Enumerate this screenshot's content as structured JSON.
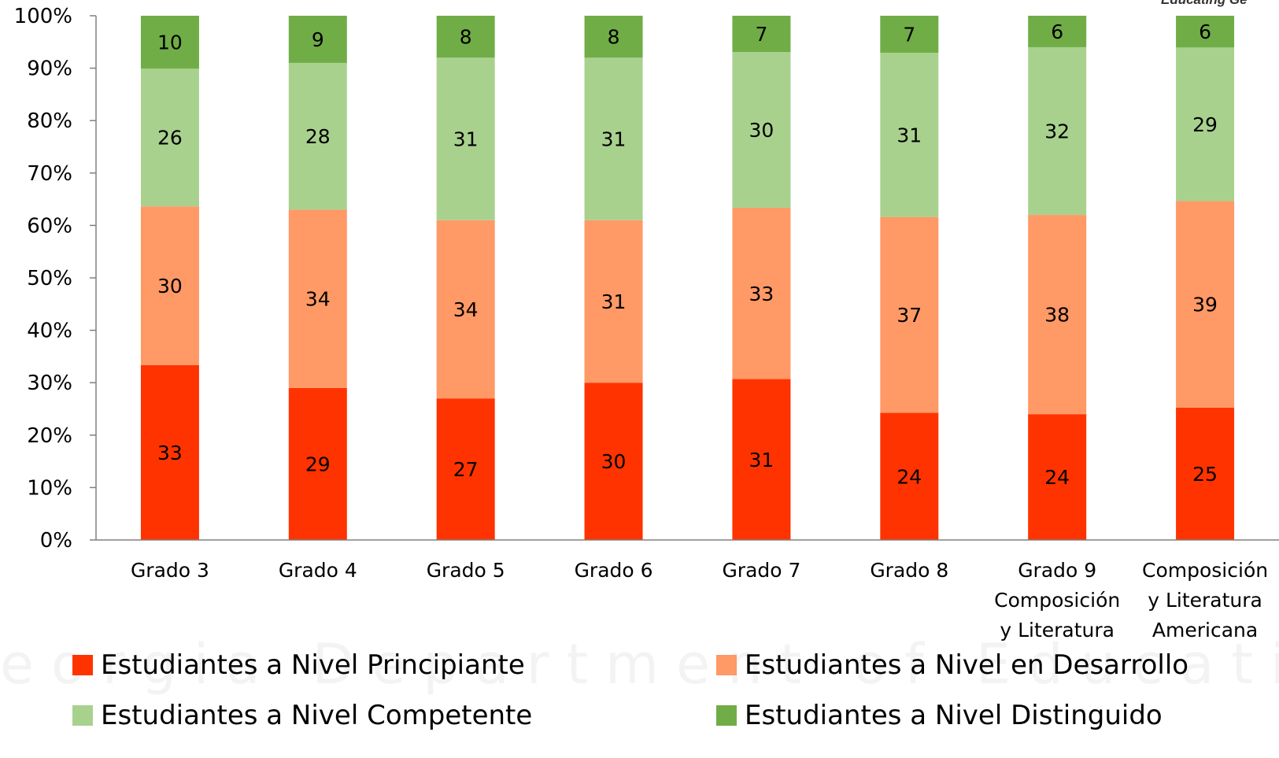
{
  "corner_text": "Educating Ge",
  "watermark_text": "eorgia Department of Educati",
  "chart_data": {
    "type": "bar",
    "stacked": true,
    "percent": true,
    "categories": [
      [
        "Grado 3"
      ],
      [
        "Grado 4"
      ],
      [
        "Grado 5"
      ],
      [
        "Grado 6"
      ],
      [
        "Grado 7"
      ],
      [
        "Grado 8"
      ],
      [
        "Grado 9",
        "Composición",
        "y Literatura"
      ],
      [
        "Composición",
        "y Literatura",
        "Americana"
      ]
    ],
    "series": [
      {
        "name": "Estudiantes a Nivel Principiante",
        "color": "#FF3300",
        "values": [
          33,
          29,
          27,
          30,
          31,
          24,
          24,
          25
        ]
      },
      {
        "name": "Estudiantes a Nivel en Desarrollo",
        "color": "#FF9966",
        "values": [
          30,
          34,
          34,
          31,
          33,
          37,
          38,
          39
        ]
      },
      {
        "name": "Estudiantes a Nivel Competente",
        "color": "#A9D18E",
        "values": [
          26,
          28,
          31,
          31,
          30,
          31,
          32,
          29
        ]
      },
      {
        "name": "Estudiantes a Nivel Distinguido",
        "color": "#70AD47",
        "values": [
          10,
          9,
          8,
          8,
          7,
          7,
          6,
          6
        ]
      }
    ],
    "yticks": [
      "0%",
      "10%",
      "20%",
      "30%",
      "40%",
      "50%",
      "60%",
      "70%",
      "80%",
      "90%",
      "100%"
    ],
    "ylim": [
      0,
      100
    ],
    "title": "",
    "xlabel": "",
    "ylabel": "",
    "legend_position": "bottom",
    "grid": false
  }
}
